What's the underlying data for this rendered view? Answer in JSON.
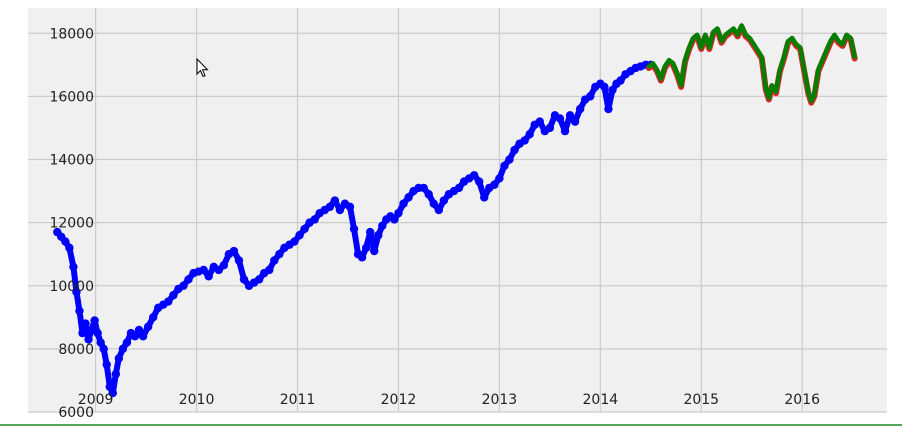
{
  "chart_data": {
    "type": "scatter",
    "title": "",
    "xlabel": "",
    "ylabel": "",
    "xlim": [
      2008.33,
      2016.84
    ],
    "ylim": [
      6000,
      18800
    ],
    "grid": true,
    "x_ticks": [
      2009,
      2010,
      2011,
      2012,
      2013,
      2014,
      2015,
      2016
    ],
    "x_tick_labels": [
      "2009",
      "2010",
      "2011",
      "2012",
      "2013",
      "2014",
      "2015",
      "2016"
    ],
    "y_ticks": [
      6000,
      8000,
      10000,
      12000,
      14000,
      16000,
      18000
    ],
    "y_tick_labels": [
      "6000",
      "8000",
      "10000",
      "12000",
      "14000",
      "16000",
      "18000"
    ],
    "series": [
      {
        "color": "#0000ff",
        "style": "markers",
        "x": [
          2008.62,
          2008.66,
          2008.7,
          2008.74,
          2008.78,
          2008.81,
          2008.84,
          2008.87,
          2008.9,
          2008.93,
          2008.96,
          2008.99,
          2009.02,
          2009.05,
          2009.08,
          2009.11,
          2009.14,
          2009.17,
          2009.2,
          2009.23,
          2009.27,
          2009.31,
          2009.35,
          2009.39,
          2009.43,
          2009.47,
          2009.52,
          2009.57,
          2009.62,
          2009.67,
          2009.72,
          2009.77,
          2009.82,
          2009.87,
          2009.92,
          2009.97,
          2010.02,
          2010.07,
          2010.12,
          2010.17,
          2010.22,
          2010.27,
          2010.32,
          2010.37,
          2010.42,
          2010.47,
          2010.52,
          2010.57,
          2010.62,
          2010.67,
          2010.72,
          2010.77,
          2010.82,
          2010.87,
          2010.92,
          2010.97,
          2011.02,
          2011.07,
          2011.12,
          2011.17,
          2011.22,
          2011.27,
          2011.32,
          2011.37,
          2011.42,
          2011.47,
          2011.52,
          2011.56,
          2011.6,
          2011.64,
          2011.68,
          2011.72,
          2011.76,
          2011.8,
          2011.84,
          2011.88,
          2011.92,
          2011.96,
          2012.0,
          2012.05,
          2012.1,
          2012.15,
          2012.2,
          2012.25,
          2012.3,
          2012.35,
          2012.4,
          2012.45,
          2012.5,
          2012.55,
          2012.6,
          2012.65,
          2012.7,
          2012.75,
          2012.8,
          2012.85,
          2012.9,
          2012.95,
          2013.0,
          2013.05,
          2013.1,
          2013.15,
          2013.2,
          2013.25,
          2013.3,
          2013.35,
          2013.4,
          2013.45,
          2013.5,
          2013.55,
          2013.6,
          2013.65,
          2013.7,
          2013.75,
          2013.8,
          2013.85,
          2013.9,
          2013.95,
          2014.0,
          2014.04,
          2014.08,
          2014.12,
          2014.16,
          2014.2,
          2014.25,
          2014.3,
          2014.35,
          2014.4,
          2014.45,
          2014.5
        ],
        "y": [
          11700,
          11550,
          11400,
          11200,
          10600,
          9800,
          9200,
          8500,
          8800,
          8300,
          8600,
          8900,
          8500,
          8200,
          8000,
          7500,
          6800,
          6600,
          7200,
          7700,
          8000,
          8200,
          8500,
          8400,
          8600,
          8400,
          8700,
          9000,
          9300,
          9400,
          9500,
          9700,
          9900,
          10000,
          10200,
          10400,
          10450,
          10500,
          10300,
          10600,
          10500,
          10650,
          11000,
          11100,
          10800,
          10200,
          10000,
          10100,
          10200,
          10400,
          10500,
          10800,
          11000,
          11200,
          11300,
          11400,
          11600,
          11800,
          12000,
          12100,
          12300,
          12400,
          12500,
          12700,
          12400,
          12600,
          12500,
          11800,
          11000,
          10900,
          11200,
          11700,
          11100,
          11600,
          11900,
          12100,
          12200,
          12100,
          12300,
          12600,
          12800,
          13000,
          13100,
          13100,
          12900,
          12600,
          12400,
          12700,
          12900,
          13000,
          13100,
          13300,
          13400,
          13500,
          13300,
          12800,
          13100,
          13200,
          13400,
          13800,
          14000,
          14300,
          14500,
          14600,
          14800,
          15100,
          15200,
          14900,
          15000,
          15400,
          15300,
          14900,
          15400,
          15200,
          15600,
          15900,
          16000,
          16300,
          16400,
          16300,
          15600,
          16200,
          16400,
          16500,
          16700,
          16800,
          16900,
          16950,
          17000,
          17000
        ]
      },
      {
        "color": "#d62728",
        "style": "line",
        "x": [
          2014.48,
          2014.52,
          2014.56,
          2014.6,
          2014.64,
          2014.68,
          2014.72,
          2014.76,
          2014.8,
          2014.84,
          2014.88,
          2014.92,
          2014.96,
          2015.0,
          2015.04,
          2015.08,
          2015.12,
          2015.16,
          2015.2,
          2015.24,
          2015.28,
          2015.32,
          2015.36,
          2015.4,
          2015.44,
          2015.48,
          2015.52,
          2015.56,
          2015.6,
          2015.64,
          2015.67,
          2015.7,
          2015.74,
          2015.78,
          2015.82,
          2015.86,
          2015.9,
          2015.94,
          2015.98,
          2016.02,
          2016.06,
          2016.09,
          2016.12,
          2016.16,
          2016.2,
          2016.24,
          2016.28,
          2016.32,
          2016.36,
          2016.4,
          2016.44,
          2016.48,
          2016.52
        ],
        "y": [
          16900,
          17000,
          16800,
          16500,
          16900,
          17100,
          17000,
          16700,
          16300,
          17100,
          17500,
          17800,
          17900,
          17500,
          17900,
          17500,
          18000,
          18100,
          17700,
          17900,
          18000,
          18100,
          17900,
          18200,
          17900,
          17800,
          17600,
          17400,
          17200,
          16200,
          15900,
          16300,
          16100,
          16800,
          17200,
          17700,
          17800,
          17600,
          17500,
          16800,
          16100,
          15800,
          16000,
          16800,
          17100,
          17400,
          17700,
          17900,
          17700,
          17600,
          17900,
          17800,
          17200
        ]
      },
      {
        "color": "#008000",
        "style": "line",
        "x": [
          2014.48,
          2014.52,
          2014.56,
          2014.6,
          2014.64,
          2014.68,
          2014.72,
          2014.76,
          2014.8,
          2014.84,
          2014.88,
          2014.92,
          2014.96,
          2015.0,
          2015.04,
          2015.08,
          2015.12,
          2015.16,
          2015.2,
          2015.24,
          2015.28,
          2015.32,
          2015.36,
          2015.4,
          2015.44,
          2015.48,
          2015.52,
          2015.56,
          2015.6,
          2015.64,
          2015.67,
          2015.7,
          2015.74,
          2015.78,
          2015.82,
          2015.86,
          2015.9,
          2015.94,
          2015.98,
          2016.02,
          2016.06,
          2016.09,
          2016.12,
          2016.16,
          2016.2,
          2016.24,
          2016.28,
          2016.32,
          2016.36,
          2016.4,
          2016.44,
          2016.48,
          2016.52
        ],
        "y": [
          16950,
          17050,
          16850,
          16550,
          16950,
          17150,
          17050,
          16750,
          16350,
          17150,
          17550,
          17850,
          17950,
          17550,
          17950,
          17550,
          18050,
          18150,
          17750,
          17950,
          18050,
          18150,
          17950,
          18250,
          17950,
          17850,
          17650,
          17450,
          17250,
          16250,
          15950,
          16350,
          16150,
          16850,
          17250,
          17750,
          17850,
          17650,
          17550,
          16850,
          16150,
          15850,
          16050,
          16850,
          17150,
          17450,
          17750,
          17950,
          17750,
          17650,
          17950,
          17850,
          17250
        ]
      }
    ]
  },
  "colors": {
    "plot_background": "#f0f0f0",
    "grid": "#cbcbcb",
    "page_background": "#ffffff"
  },
  "icons": {
    "cursor": "mouse-pointer-icon"
  }
}
